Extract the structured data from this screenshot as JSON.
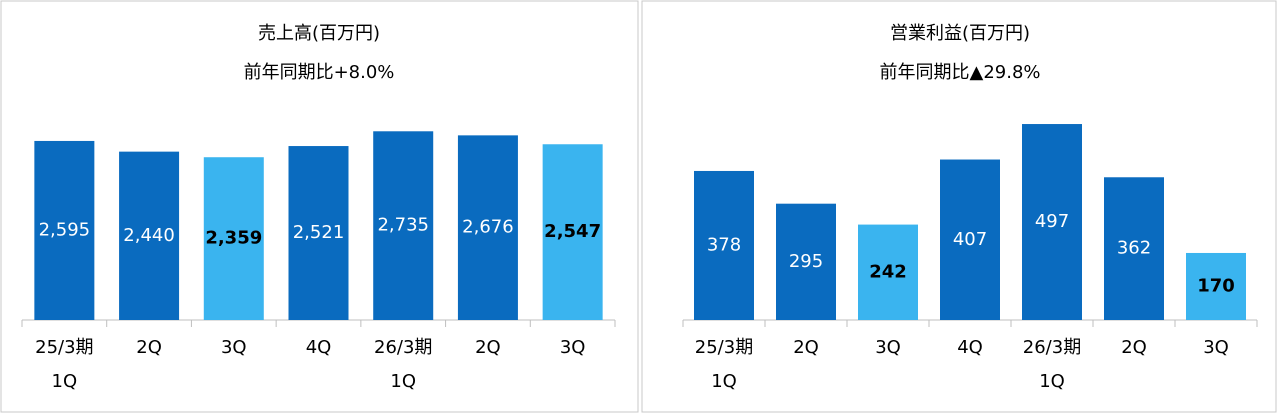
{
  "chart_data": [
    {
      "type": "bar",
      "title": "売上高(百万円)",
      "subtitle": "前年同期比+8.0%",
      "categories": [
        [
          "25/3期",
          "1Q"
        ],
        [
          "2Q"
        ],
        [
          "3Q"
        ],
        [
          "4Q"
        ],
        [
          "26/3期",
          "1Q"
        ],
        [
          "2Q"
        ],
        [
          "3Q"
        ]
      ],
      "values": [
        2595,
        2440,
        2359,
        2521,
        2735,
        2676,
        2547
      ],
      "value_labels": [
        "2,595",
        "2,440",
        "2,359",
        "2,521",
        "2,735",
        "2,676",
        "2,547"
      ],
      "colors": [
        "#0a6bbf",
        "#0a6bbf",
        "#3ab4ef",
        "#0a6bbf",
        "#0a6bbf",
        "#0a6bbf",
        "#3ab4ef"
      ],
      "ylim": [
        0,
        3000
      ]
    },
    {
      "type": "bar",
      "title": "営業利益(百万円)",
      "subtitle": "前年同期比▲29.8%",
      "categories": [
        [
          "25/3期",
          "1Q"
        ],
        [
          "2Q"
        ],
        [
          "3Q"
        ],
        [
          "4Q"
        ],
        [
          "26/3期",
          "1Q"
        ],
        [
          "2Q"
        ],
        [
          "3Q"
        ]
      ],
      "values": [
        378,
        295,
        242,
        407,
        497,
        362,
        170
      ],
      "colors": [
        "#0a6bbf",
        "#0a6bbf",
        "#3ab4ef",
        "#0a6bbf",
        "#0a6bbf",
        "#0a6bbf",
        "#3ab4ef"
      ],
      "ylim": [
        0,
        525
      ]
    }
  ]
}
